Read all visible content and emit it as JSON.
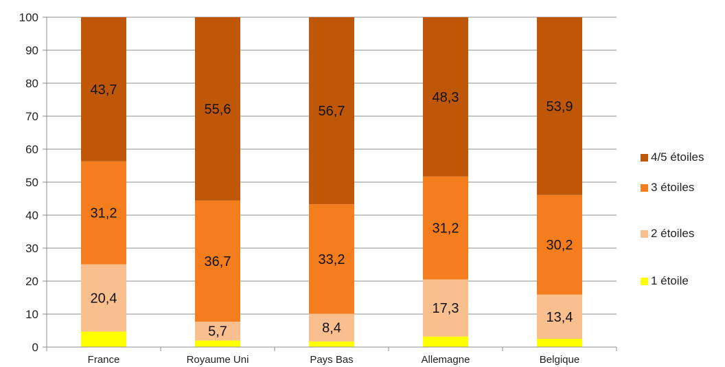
{
  "chart_data": {
    "type": "bar",
    "stacked": true,
    "categories": [
      "France",
      "Royaume Uni",
      "Pays Bas",
      "Allemagne",
      "Belgique"
    ],
    "ylim": [
      0,
      100
    ],
    "yticks": [
      0,
      10,
      20,
      30,
      40,
      50,
      60,
      70,
      80,
      90,
      100
    ],
    "series": [
      {
        "name": "1 étoile",
        "color": "#ffff00",
        "values": [
          4.7,
          2.0,
          1.7,
          3.2,
          2.5
        ],
        "labels": [
          "",
          "",
          "",
          "",
          ""
        ]
      },
      {
        "name": "2 étoiles",
        "color": "#f9bf8f",
        "values": [
          20.4,
          5.7,
          8.4,
          17.3,
          13.4
        ],
        "labels": [
          "20,4",
          "5,7",
          "8,4",
          "17,3",
          "13,4"
        ]
      },
      {
        "name": "3 étoiles",
        "color": "#f47d1e",
        "values": [
          31.2,
          36.7,
          33.2,
          31.2,
          30.2
        ],
        "labels": [
          "31,2",
          "36,7",
          "33,2",
          "31,2",
          "30,2"
        ]
      },
      {
        "name": "4/5 étoiles",
        "color": "#bf5709",
        "values": [
          43.7,
          55.6,
          56.7,
          48.3,
          53.9
        ],
        "labels": [
          "43,7",
          "55,6",
          "56,7",
          "48,3",
          "53,9"
        ]
      }
    ],
    "legend_position": "right",
    "grid": true
  }
}
